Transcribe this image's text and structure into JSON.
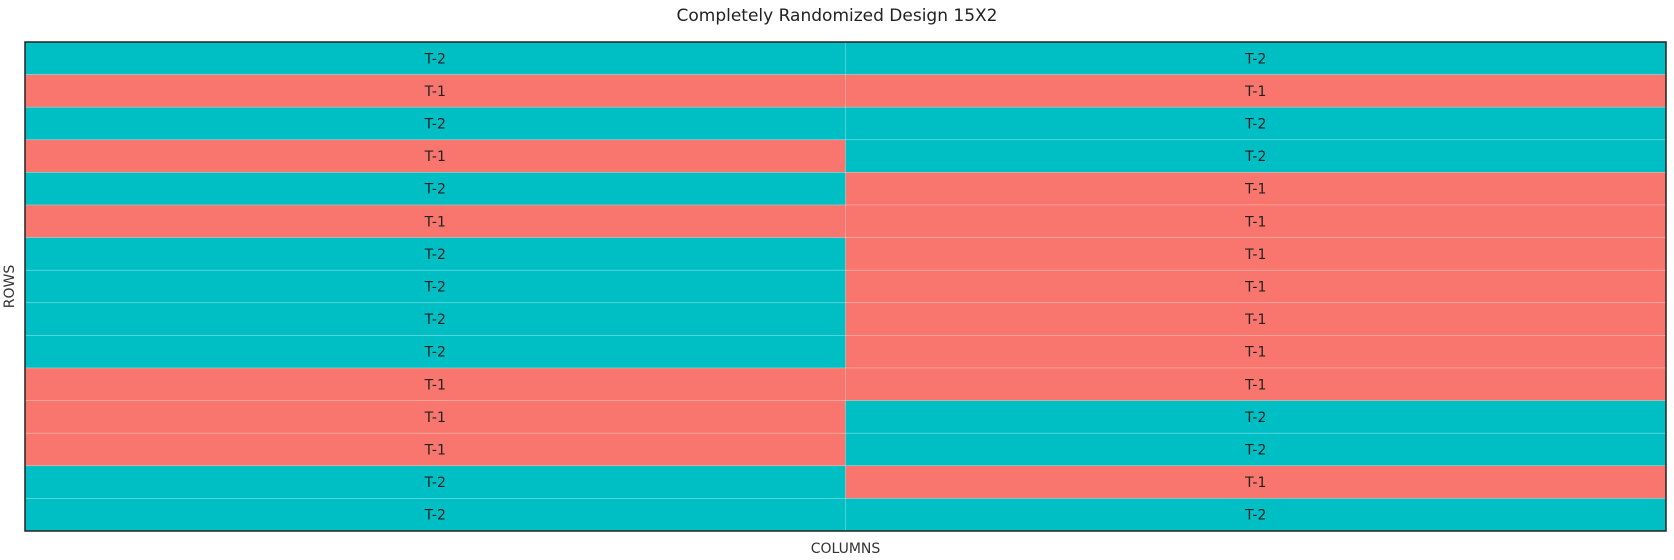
{
  "chart_data": {
    "type": "heatmap",
    "title": "Completely Randomized Design 15X2",
    "xlabel": "COLUMNS",
    "ylabel": "ROWS",
    "columns": 2,
    "rows": 15,
    "cells": [
      [
        "T-2",
        "T-2"
      ],
      [
        "T-1",
        "T-1"
      ],
      [
        "T-2",
        "T-2"
      ],
      [
        "T-1",
        "T-2"
      ],
      [
        "T-2",
        "T-1"
      ],
      [
        "T-1",
        "T-1"
      ],
      [
        "T-2",
        "T-1"
      ],
      [
        "T-2",
        "T-1"
      ],
      [
        "T-2",
        "T-1"
      ],
      [
        "T-2",
        "T-1"
      ],
      [
        "T-1",
        "T-1"
      ],
      [
        "T-1",
        "T-2"
      ],
      [
        "T-1",
        "T-2"
      ],
      [
        "T-2",
        "T-1"
      ],
      [
        "T-2",
        "T-2"
      ]
    ],
    "colors": {
      "T-1": "#f8766d",
      "T-2": "#00bfc4"
    }
  }
}
